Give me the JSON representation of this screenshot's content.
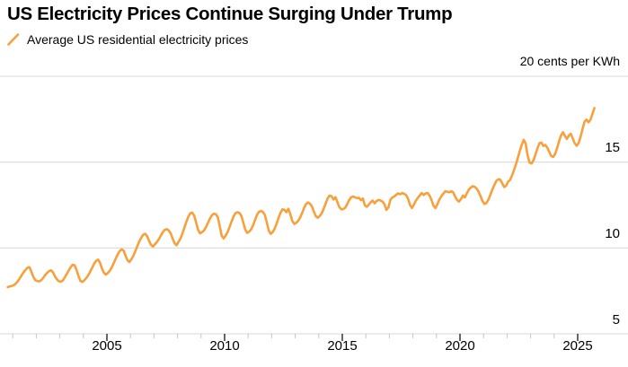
{
  "page": {
    "background": "#ffffff"
  },
  "header": {
    "title": "US Electricity Prices Continue Surging Under Trump",
    "legend": {
      "icon": "orange-slash-icon",
      "label": "Average US residential electricity prices"
    }
  },
  "chart_data": {
    "type": "line",
    "title": "US Electricity Prices Continue Surging Under Trump",
    "unit_label": "20 cents per KWh",
    "legend_entries": [
      "Average US residential electricity prices"
    ],
    "legend_position": "top-left",
    "grid": true,
    "ylabel": "cents per KWh",
    "ylim": [
      5,
      20
    ],
    "y_gridlines": [
      20,
      15,
      10,
      5
    ],
    "y_tick_labels": [
      "15",
      "10",
      "5"
    ],
    "x_ticks_major": [
      2005,
      2010,
      2015,
      2020,
      2025
    ],
    "x_ticks_minor": [
      2001,
      2002,
      2003,
      2004,
      2006,
      2007,
      2008,
      2009,
      2011,
      2012,
      2013,
      2014,
      2016,
      2017,
      2018,
      2019,
      2021,
      2022,
      2023,
      2024
    ],
    "colors": {
      "line": "#F7A03C",
      "grid": "#DADADA",
      "tick_minor": "#C4C4C4",
      "tick_major": "#000000",
      "text": "#000000"
    },
    "series": [
      {
        "name": "Average US residential electricity prices",
        "frequency": "monthly",
        "start": {
          "year": 2000,
          "month": 10
        },
        "end": {
          "year": 2025,
          "month": 9
        },
        "unit": "cents per KWh",
        "values": [
          7.72,
          7.76,
          7.79,
          7.83,
          7.92,
          8.05,
          8.22,
          8.4,
          8.58,
          8.72,
          8.85,
          8.88,
          8.62,
          8.32,
          8.12,
          8.08,
          8.05,
          8.12,
          8.25,
          8.42,
          8.55,
          8.65,
          8.7,
          8.58,
          8.35,
          8.18,
          8.06,
          8.04,
          8.1,
          8.28,
          8.48,
          8.68,
          8.88,
          9.02,
          9.0,
          8.72,
          8.38,
          8.08,
          8.02,
          8.12,
          8.25,
          8.42,
          8.62,
          8.85,
          9.08,
          9.25,
          9.32,
          9.12,
          8.8,
          8.55,
          8.45,
          8.55,
          8.68,
          8.88,
          9.12,
          9.38,
          9.62,
          9.82,
          9.92,
          9.85,
          9.55,
          9.28,
          9.18,
          9.35,
          9.55,
          9.82,
          10.1,
          10.38,
          10.6,
          10.77,
          10.82,
          10.68,
          10.42,
          10.18,
          10.08,
          10.22,
          10.35,
          10.52,
          10.72,
          10.92,
          11.05,
          11.1,
          11.02,
          10.85,
          10.55,
          10.28,
          10.16,
          10.35,
          10.55,
          10.85,
          11.18,
          11.52,
          11.82,
          12.02,
          12.06,
          11.88,
          11.48,
          11.05,
          10.85,
          10.92,
          11.02,
          11.22,
          11.45,
          11.7,
          11.9,
          12.0,
          11.97,
          11.8,
          11.3,
          10.72,
          10.55,
          10.72,
          10.92,
          11.22,
          11.52,
          11.82,
          12.02,
          12.08,
          12.05,
          11.88,
          11.5,
          11.08,
          10.88,
          10.95,
          11.08,
          11.32,
          11.62,
          11.92,
          12.1,
          12.16,
          12.1,
          11.92,
          11.5,
          11.02,
          10.82,
          10.92,
          11.12,
          11.42,
          11.75,
          12.05,
          12.25,
          12.22,
          12.08,
          12.28,
          11.98,
          11.58,
          11.4,
          11.46,
          11.58,
          11.78,
          12.02,
          12.32,
          12.55,
          12.65,
          12.58,
          12.42,
          12.12,
          11.85,
          11.76,
          11.86,
          12.02,
          12.28,
          12.58,
          12.88,
          13.05,
          13.02,
          12.82,
          12.96,
          12.68,
          12.38,
          12.25,
          12.26,
          12.35,
          12.55,
          12.78,
          12.95,
          13.0,
          12.95,
          12.9,
          12.92,
          12.78,
          12.88,
          12.48,
          12.4,
          12.52,
          12.66,
          12.76,
          12.6,
          12.74,
          12.8,
          12.76,
          12.7,
          12.55,
          12.22,
          12.36,
          12.8,
          12.94,
          13.0,
          13.1,
          13.18,
          13.12,
          13.2,
          13.16,
          13.08,
          12.88,
          12.52,
          12.32,
          12.52,
          12.76,
          12.92,
          13.06,
          13.2,
          13.08,
          13.18,
          13.2,
          13.05,
          12.8,
          12.46,
          12.32,
          12.56,
          12.82,
          13.02,
          13.16,
          13.3,
          13.28,
          13.24,
          13.3,
          13.24,
          13.0,
          12.8,
          12.7,
          12.85,
          13.05,
          12.95,
          13.18,
          13.4,
          13.52,
          13.6,
          13.56,
          13.45,
          13.28,
          13.02,
          12.72,
          12.56,
          12.62,
          12.82,
          13.1,
          13.4,
          13.66,
          13.9,
          14.0,
          13.98,
          13.78,
          13.55,
          13.62,
          13.86,
          13.96,
          14.22,
          14.52,
          14.86,
          15.25,
          15.65,
          16.02,
          16.3,
          16.08,
          15.38,
          14.96,
          14.92,
          15.12,
          15.46,
          15.8,
          16.1,
          16.14,
          15.94,
          16.0,
          15.84,
          15.6,
          15.36,
          15.3,
          15.48,
          15.82,
          16.22,
          16.55,
          16.74,
          16.52,
          16.35,
          16.55,
          16.65,
          16.38,
          16.1,
          15.95,
          16.12,
          16.5,
          16.95,
          17.35,
          17.48,
          17.32,
          17.46,
          17.8,
          18.15
        ]
      }
    ]
  }
}
